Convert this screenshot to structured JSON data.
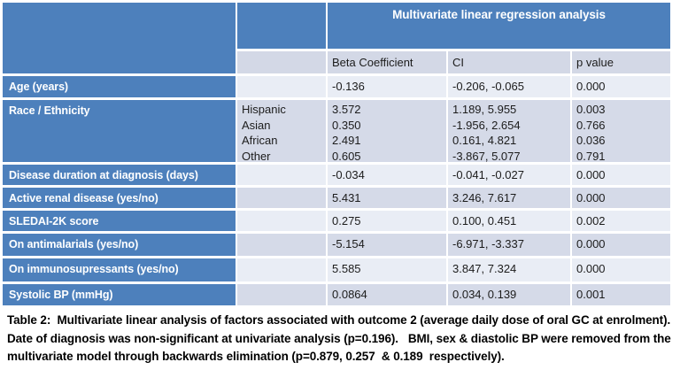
{
  "colors": {
    "header_blue": "#4d80bc",
    "band_light": "#e9edf5",
    "band_dark": "#d5dae8",
    "subheader_bg": "#d3d8e6",
    "grid_line_white": "#ffffff"
  },
  "table": {
    "banner": "Multivariate linear regression analysis",
    "col_headers": {
      "beta": "Beta Coefficient",
      "ci": "CI",
      "p": "p value"
    },
    "rows": [
      {
        "label": "Age (years)",
        "beta": "-0.136",
        "ci": "-0.206, -0.065",
        "p": "0.000"
      },
      {
        "label": "Race / Ethnicity",
        "sub": [
          {
            "name": "Hispanic",
            "beta": "3.572",
            "ci": "1.189, 5.955",
            "p": "0.003"
          },
          {
            "name": "Asian",
            "beta": "0.350",
            "ci": "-1.956, 2.654",
            "p": "0.766"
          },
          {
            "name": "African",
            "beta": "2.491",
            "ci": "0.161, 4.821",
            "p": "0.036"
          },
          {
            "name": "Other",
            "beta": "0.605",
            "ci": "-3.867, 5.077",
            "p": "0.791"
          }
        ]
      },
      {
        "label": "Disease duration at diagnosis (days)",
        "beta": "-0.034",
        "ci": "-0.041, -0.027",
        "p": "0.000"
      },
      {
        "label": "Active renal disease (yes/no)",
        "beta": "5.431",
        "ci": "3.246, 7.617",
        "p": "0.000"
      },
      {
        "label": "SLEDAI-2K score",
        "beta": "0.275",
        "ci": "0.100, 0.451",
        "p": "0.002"
      },
      {
        "label": "On antimalarials (yes/no)",
        "beta": "-5.154",
        "ci": "-6.971, -3.337",
        "p": "0.000"
      },
      {
        "label": "On immunosupressants (yes/no)",
        "beta": "5.585",
        "ci": "3.847, 7.324",
        "p": "0.000"
      },
      {
        "label": "Systolic BP (mmHg)",
        "beta": "0.0864",
        "ci": "0.034, 0.139",
        "p": "0.001"
      }
    ]
  },
  "caption": {
    "lines": [
      "Table 2:  Multivariate linear analysis of factors associated with outcome 2 (average daily dose of oral GC at enrolment).",
      "Date of diagnosis was non-significant at univariate analysis (p=0.196).   BMI, sex & diastolic BP were removed from the",
      "multivariate model through backwards elimination (p=0.879, 0.257  & 0.189  respectively)."
    ]
  }
}
